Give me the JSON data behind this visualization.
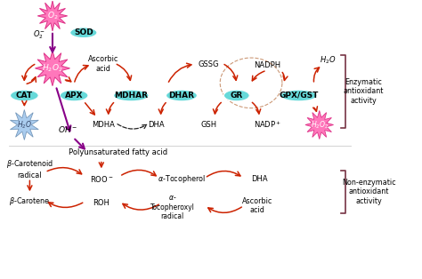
{
  "bg_color": "#ffffff",
  "enzyme_color": "#66d9d9",
  "arrow_color": "#cc2200",
  "purple_color": "#880088",
  "red_arrow": "#cc2200",
  "dashed_color": "#222222",
  "dashed_circle_color": "#cc9977",
  "h2o2_color": "#ff77bb",
  "h2o2_edge": "#dd3388",
  "o2_color": "#ff77bb",
  "o2_edge": "#dd3388",
  "h2o_color": "#aaccee",
  "h2o_edge": "#7799bb",
  "text_color": "#000000",
  "bracket_color": "#773344",
  "figsize": [
    4.74,
    3.14
  ],
  "dpi": 100,
  "xlim": [
    0,
    10
  ],
  "ylim": [
    0,
    6.6
  ]
}
